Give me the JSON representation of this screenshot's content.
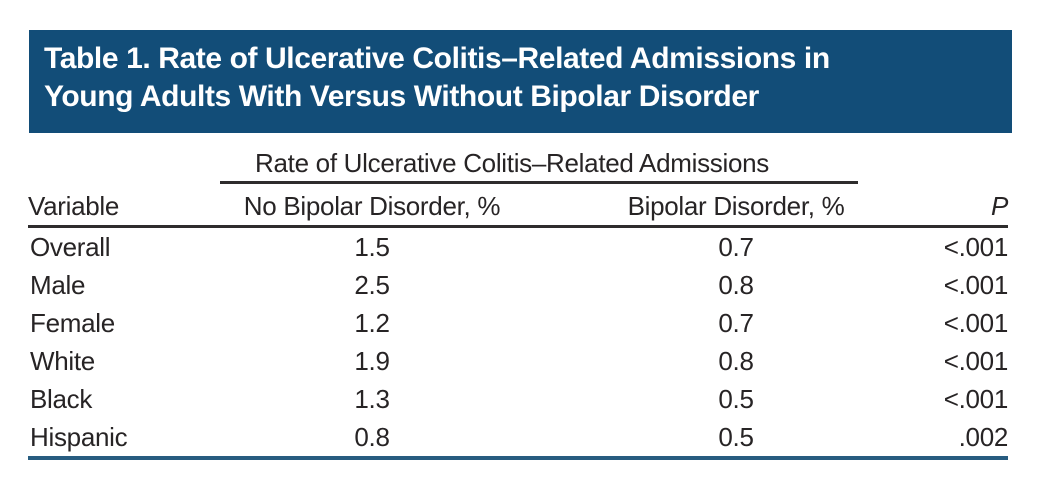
{
  "banner": {
    "title_lines": [
      "Table 1. Rate of Ulcerative Colitis–Related Admissions in",
      "Young Adults With Versus Without Bipolar Disorder"
    ],
    "bg_color": "#124d78",
    "text_color": "#ffffff"
  },
  "table": {
    "spanner_header": "Rate of Ulcerative Colitis–Related Admissions",
    "columns": [
      "Variable",
      "No Bipolar Disorder, %",
      "Bipolar Disorder, %",
      "P"
    ],
    "rows": [
      {
        "variable": "Overall",
        "no_bipolar_pct": "1.5",
        "bipolar_pct": "0.7",
        "p": "<.001"
      },
      {
        "variable": "Male",
        "no_bipolar_pct": "2.5",
        "bipolar_pct": "0.8",
        "p": "<.001"
      },
      {
        "variable": "Female",
        "no_bipolar_pct": "1.2",
        "bipolar_pct": "0.7",
        "p": "<.001"
      },
      {
        "variable": "White",
        "no_bipolar_pct": "1.9",
        "bipolar_pct": "0.8",
        "p": "<.001"
      },
      {
        "variable": "Black",
        "no_bipolar_pct": "1.3",
        "bipolar_pct": "0.5",
        "p": "<.001"
      },
      {
        "variable": "Hispanic",
        "no_bipolar_pct": "0.8",
        "bipolar_pct": "0.5",
        "p": ".002"
      }
    ],
    "rule_color_dark": "#2e2c2d",
    "rule_color_blue": "#275c80",
    "text_color": "#272425"
  }
}
